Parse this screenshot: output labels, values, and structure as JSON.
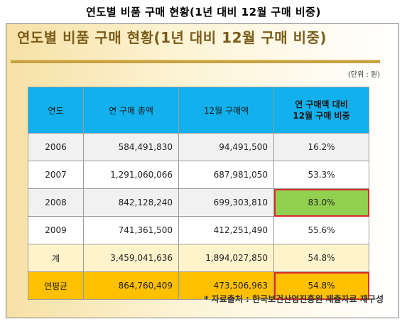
{
  "outer_title": "연도별 비품 구매 현황(1년 대비 12월 구매 비중)",
  "inner_title": "연도별 비품 구매 현황(1년 대비 12월 구매 비중)",
  "unit": "(단위 : 원)",
  "table": {
    "headers": [
      "연도",
      "연 구매 총액",
      "12월 구매액",
      "연 구매액 대비",
      "12월 구매 비중"
    ],
    "rows": [
      {
        "year": "2006",
        "total": "584,491,830",
        "dec": "94,491,500",
        "rate": "16.2%"
      },
      {
        "year": "2007",
        "total": "1,291,060,066",
        "dec": "687,981,050",
        "rate": "53.3%"
      },
      {
        "year": "2008",
        "total": "842,128,240",
        "dec": "699,303,810",
        "rate": "83.0%"
      },
      {
        "year": "2009",
        "total": "741,361,500",
        "dec": "412,251,490",
        "rate": "55.6%"
      },
      {
        "year": "계",
        "total": "3,459,041,636",
        "dec": "1,894,027,850",
        "rate": "54.8%"
      },
      {
        "year": "연평균",
        "total": "864,760,409",
        "dec": "473,506,963",
        "rate": "54.8%"
      }
    ]
  },
  "source": "* 자료출처 : 한국보건산업진흥원 제출자료 재구성",
  "colors": {
    "header_bg": "#12b0ec",
    "highlight_green": "#92d050",
    "highlight_border": "#d92b2b",
    "average_row": "#ffc000",
    "sum_row": "#fff3cc",
    "title_text": "#7b5c1a"
  }
}
